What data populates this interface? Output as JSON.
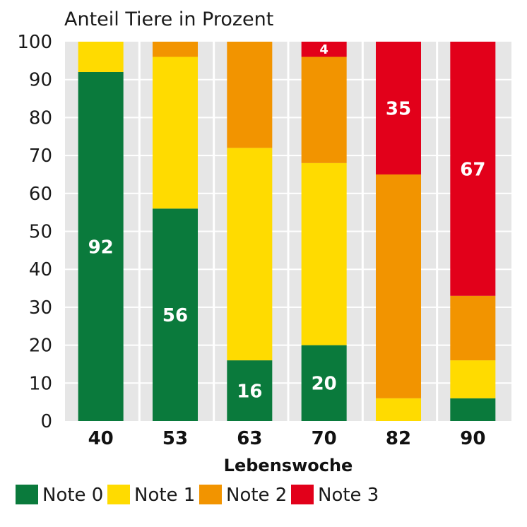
{
  "chart_data": {
    "type": "bar",
    "stacked": true,
    "title": "Anteil Tiere in Prozent",
    "xlabel": "Lebenswoche",
    "ylabel": "",
    "ylim": [
      0,
      100
    ],
    "yticks": [
      "0",
      "10",
      "20",
      "30",
      "40",
      "50",
      "60",
      "70",
      "80",
      "90",
      "100"
    ],
    "categories": [
      "40",
      "53",
      "63",
      "70",
      "82",
      "90"
    ],
    "series": [
      {
        "name": "Note 0",
        "color": "#0a7a3c",
        "values": [
          92,
          56,
          16,
          20,
          0,
          6
        ]
      },
      {
        "name": "Note 1",
        "color": "#ffdb00",
        "values": [
          8,
          40,
          56,
          48,
          6,
          10
        ]
      },
      {
        "name": "Note 2",
        "color": "#f29400",
        "values": [
          0,
          4,
          28,
          28,
          59,
          17
        ]
      },
      {
        "name": "Note 3",
        "color": "#e2001a",
        "values": [
          0,
          0,
          0,
          4,
          35,
          67
        ]
      }
    ],
    "data_labels": [
      {
        "category_index": 0,
        "series_index": 0,
        "text": "92"
      },
      {
        "category_index": 1,
        "series_index": 0,
        "text": "56"
      },
      {
        "category_index": 2,
        "series_index": 0,
        "text": "16"
      },
      {
        "category_index": 3,
        "series_index": 0,
        "text": "20"
      },
      {
        "category_index": 3,
        "series_index": 3,
        "text": "4"
      },
      {
        "category_index": 4,
        "series_index": 3,
        "text": "35"
      },
      {
        "category_index": 5,
        "series_index": 3,
        "text": "67"
      }
    ],
    "grid": true,
    "background_color": "#e6e6e6",
    "legend_position": "bottom"
  }
}
